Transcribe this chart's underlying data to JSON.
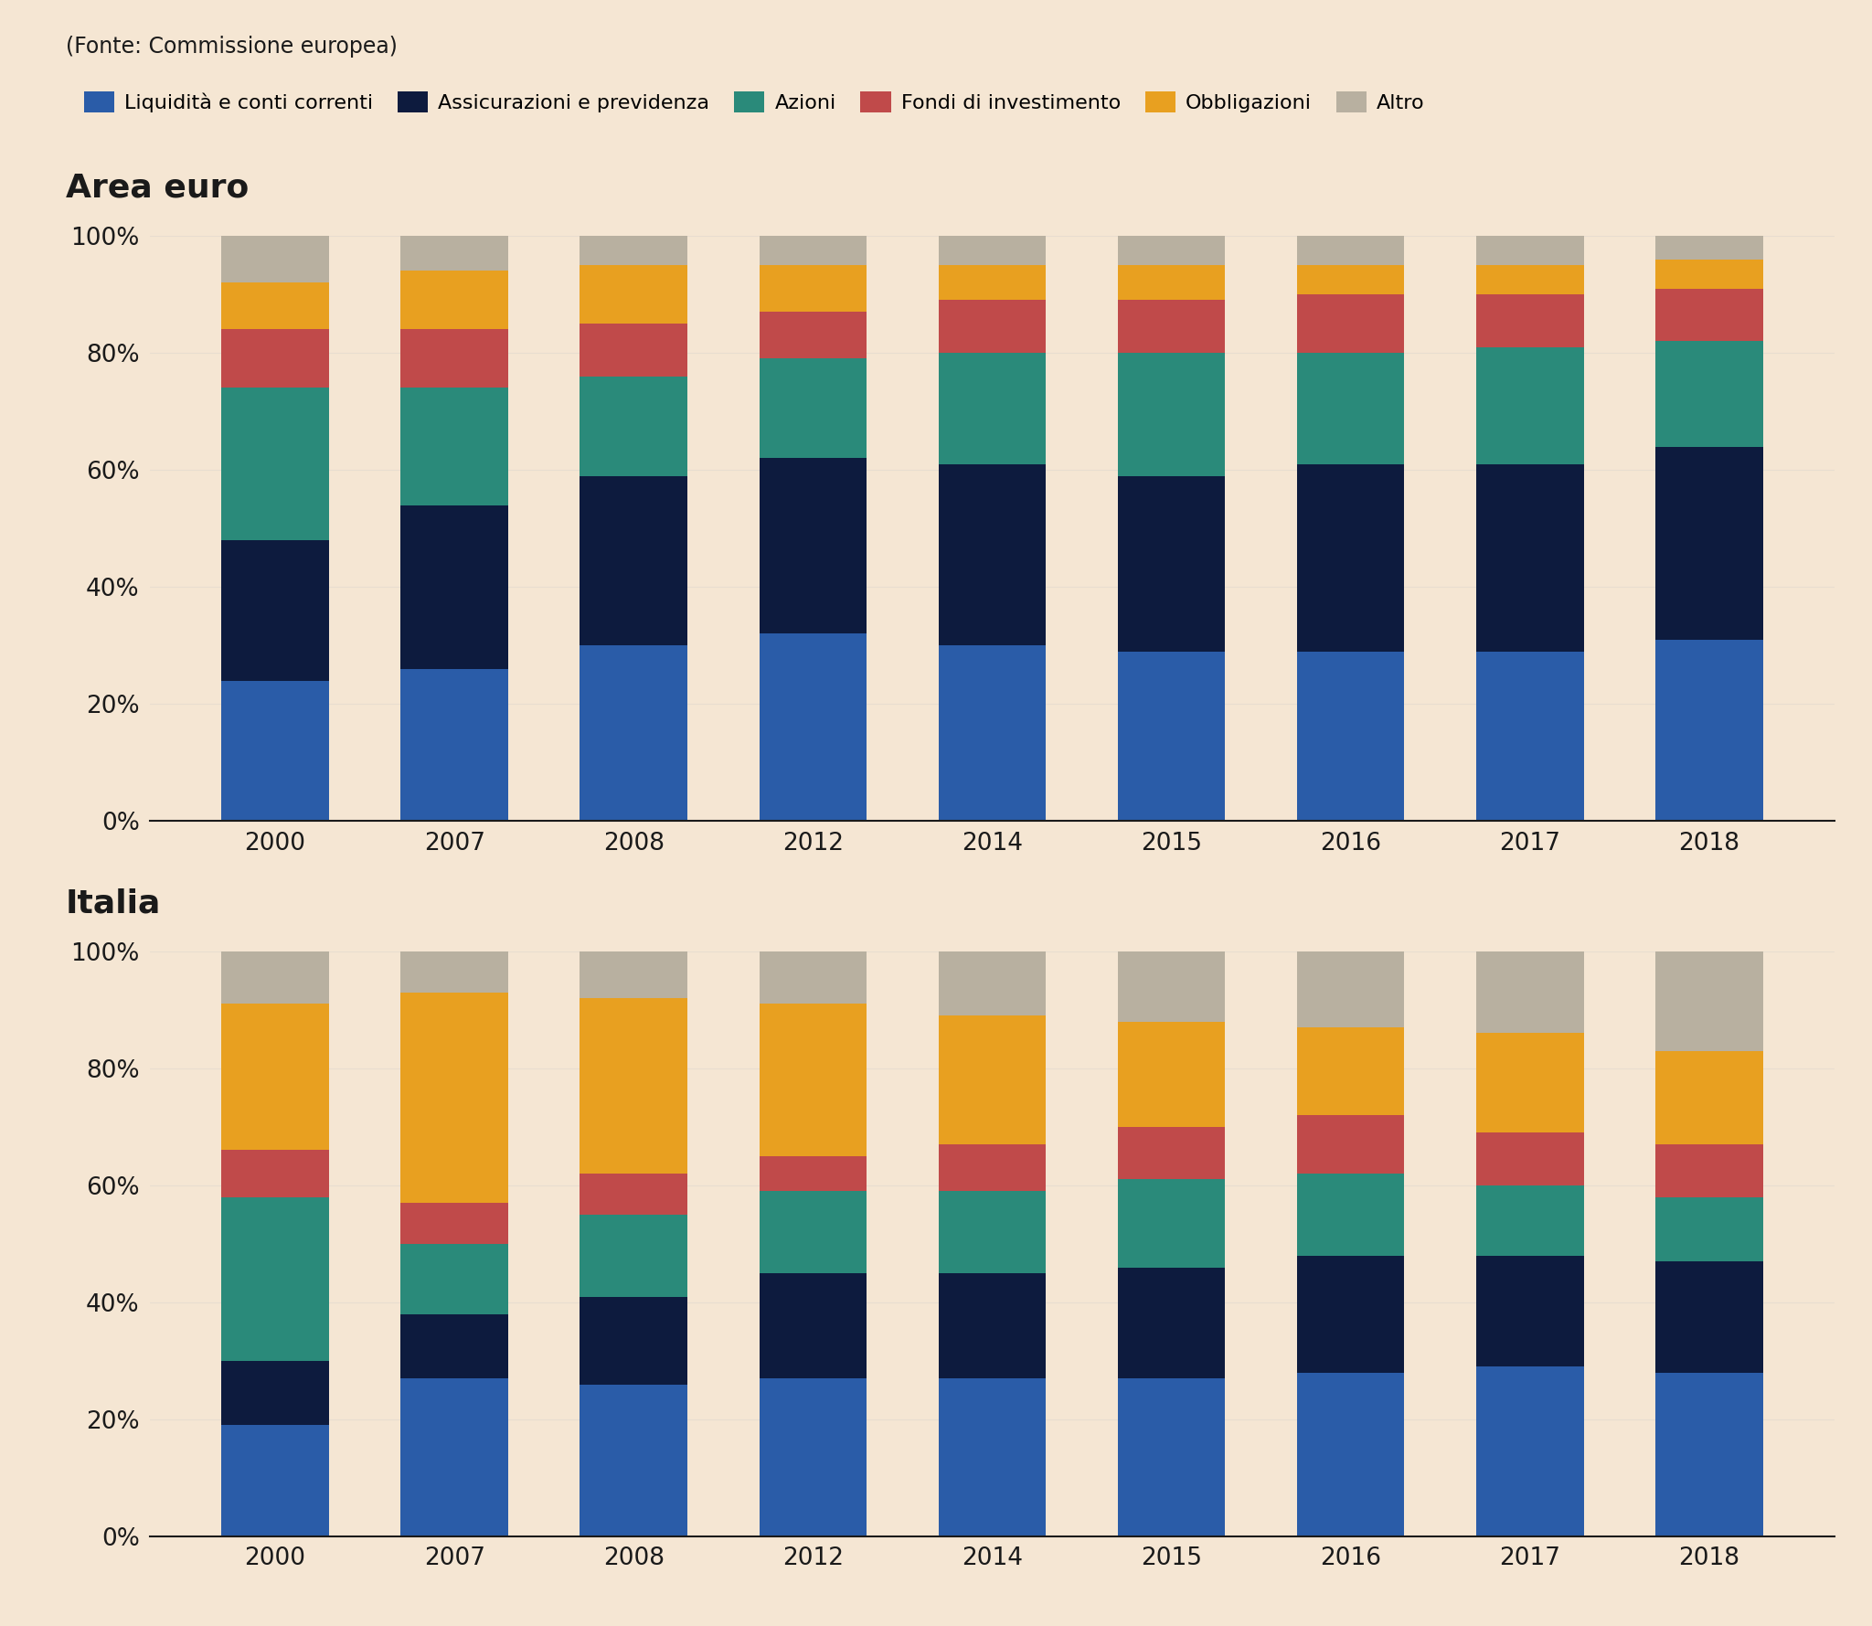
{
  "background_color": "#f5e6d3",
  "fonte_text": "(Fonte: Commissione europea)",
  "legend_labels": [
    "Liquidità e conti correnti",
    "Assicurazioni e previdenza",
    "Azioni",
    "Fondi di investimento",
    "Obbligazioni",
    "Altro"
  ],
  "colors": [
    "#2a5ca8",
    "#0d1b3e",
    "#2a8a7a",
    "#c04a4a",
    "#e8a020",
    "#b8b0a0"
  ],
  "years": [
    "2000",
    "2007",
    "2008",
    "2012",
    "2014",
    "2015",
    "2016",
    "2017",
    "2018"
  ],
  "section1_title": "Area euro",
  "section2_title": "Italia",
  "euro_data": {
    "Liquidità e conti correnti": [
      24,
      26,
      30,
      32,
      30,
      29,
      29,
      29,
      31
    ],
    "Assicurazioni e previdenza": [
      24,
      28,
      29,
      30,
      31,
      30,
      32,
      32,
      33
    ],
    "Azioni": [
      26,
      20,
      17,
      17,
      19,
      21,
      19,
      20,
      18
    ],
    "Fondi di investimento": [
      10,
      10,
      9,
      8,
      9,
      9,
      10,
      9,
      9
    ],
    "Obbligazioni": [
      8,
      10,
      10,
      8,
      6,
      6,
      5,
      5,
      5
    ],
    "Altro": [
      8,
      6,
      5,
      5,
      5,
      5,
      5,
      5,
      4
    ]
  },
  "italia_data": {
    "Liquidità e conti correnti": [
      19,
      27,
      26,
      27,
      27,
      27,
      28,
      29,
      28
    ],
    "Assicurazioni e previdenza": [
      11,
      11,
      15,
      18,
      18,
      19,
      20,
      19,
      19
    ],
    "Azioni": [
      28,
      12,
      14,
      14,
      14,
      15,
      14,
      12,
      11
    ],
    "Fondi di investimento": [
      8,
      7,
      7,
      6,
      8,
      9,
      10,
      9,
      9
    ],
    "Obbligazioni": [
      25,
      36,
      30,
      26,
      22,
      18,
      15,
      17,
      16
    ],
    "Altro": [
      9,
      7,
      8,
      9,
      11,
      12,
      13,
      14,
      17
    ]
  }
}
